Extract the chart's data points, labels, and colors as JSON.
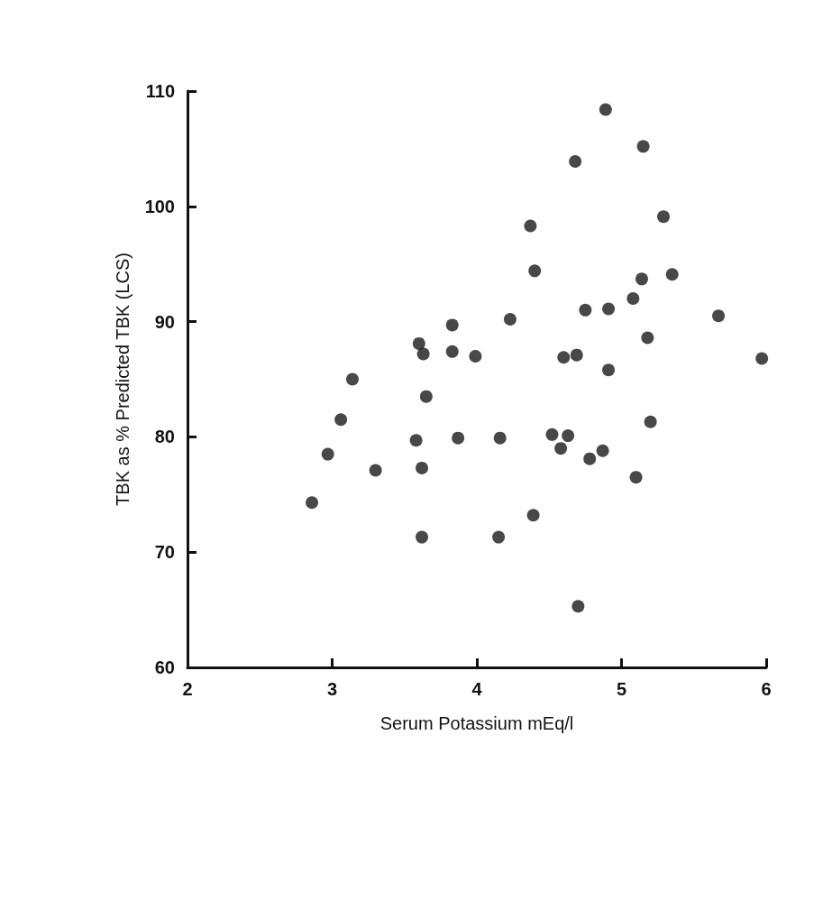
{
  "chart_data": {
    "type": "scatter",
    "xlabel": "Serum Potassium mEq/l",
    "ylabel": "TBK as % Predicted TBK (LCS)",
    "xlim": [
      2,
      6
    ],
    "xticks": [
      2,
      3,
      4,
      5,
      6
    ],
    "ylim": [
      60,
      110
    ],
    "yticks": [
      60,
      70,
      80,
      90,
      100,
      110
    ],
    "grid": false,
    "marker": "circle",
    "series": [
      {
        "color": "#1a1a1a",
        "x": [
          2.86,
          2.97,
          3.06,
          3.14,
          3.3,
          3.58,
          3.62,
          3.62,
          3.6,
          3.63,
          3.65,
          3.83,
          3.83,
          3.87,
          3.99,
          4.89,
          5.15,
          4.68,
          5.29,
          4.37,
          4.4,
          5.35,
          5.14,
          5.08,
          4.23,
          4.75,
          4.91,
          5.67,
          5.18,
          4.6,
          4.69,
          5.97,
          4.91,
          5.2,
          4.16,
          4.52,
          4.63,
          4.58,
          4.87,
          4.78,
          5.1,
          4.39,
          4.15,
          4.7
        ],
        "values": [
          74.3,
          78.5,
          81.5,
          85.0,
          77.1,
          79.7,
          77.3,
          71.3,
          88.1,
          87.2,
          83.5,
          89.7,
          87.4,
          79.9,
          87.0,
          108.4,
          105.2,
          103.9,
          99.1,
          98.3,
          94.4,
          94.1,
          93.7,
          92.0,
          90.2,
          91.0,
          91.1,
          90.5,
          88.6,
          86.9,
          87.1,
          86.8,
          85.8,
          81.3,
          79.9,
          80.2,
          80.1,
          79.0,
          78.8,
          78.1,
          76.5,
          73.2,
          71.3,
          65.3
        ]
      }
    ]
  }
}
